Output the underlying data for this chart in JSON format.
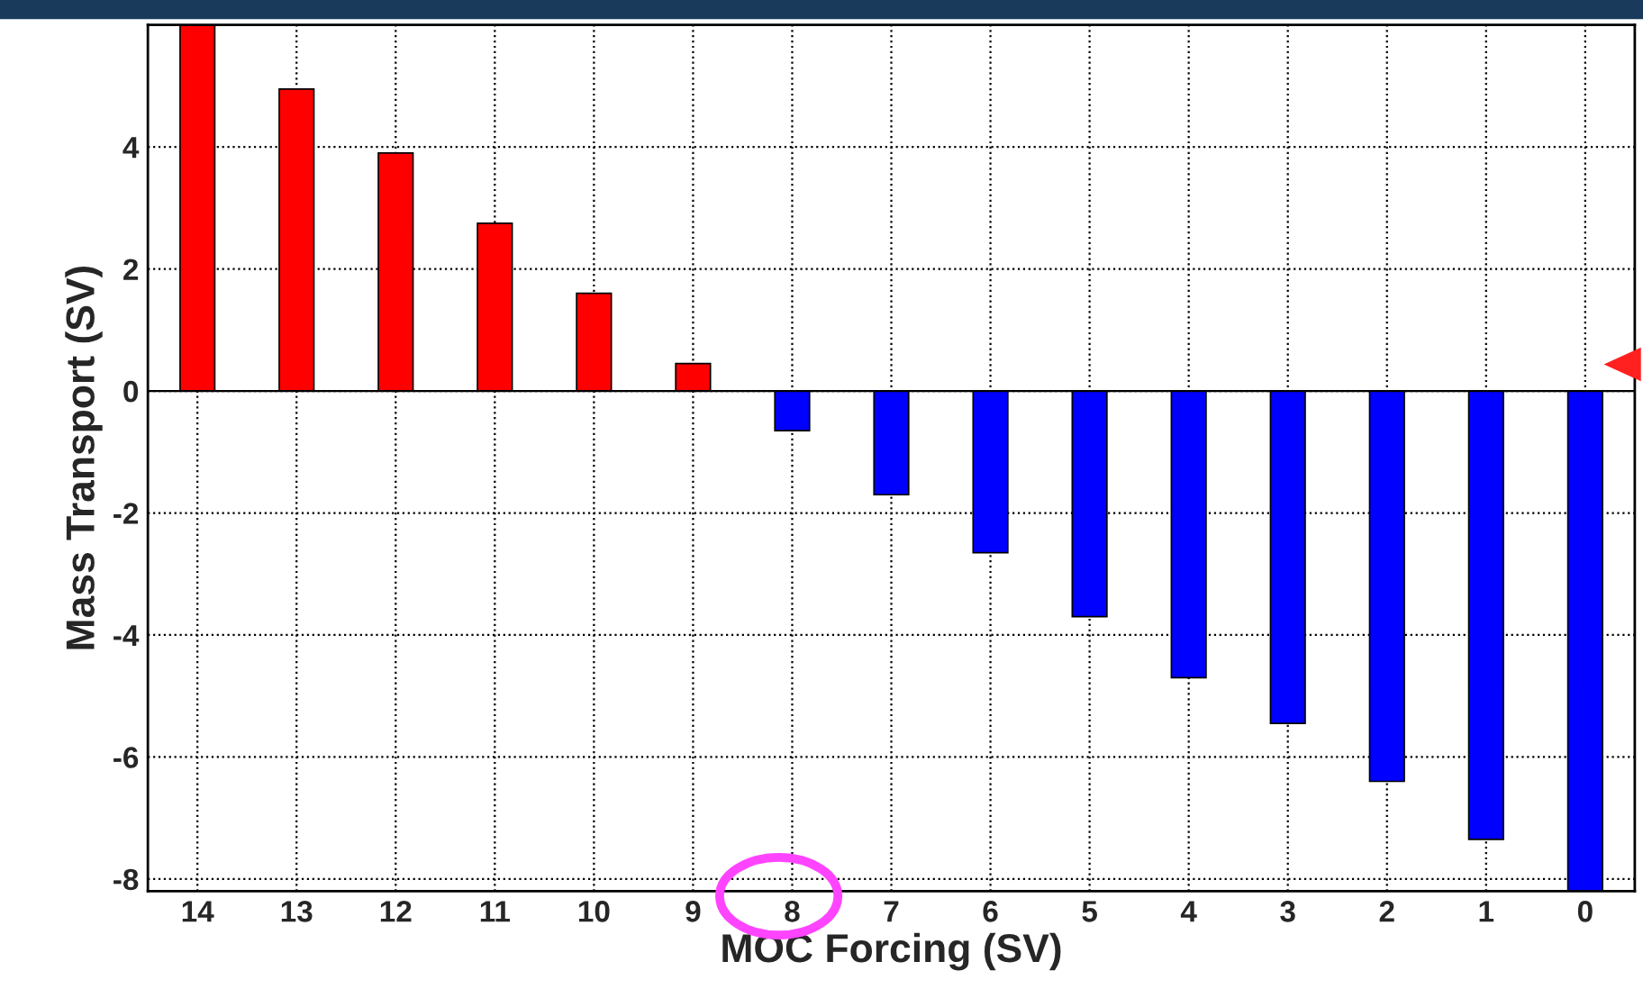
{
  "chart_data": {
    "type": "bar",
    "xlabel": "MOC Forcing (SV)",
    "ylabel": "Mass Transport (SV)",
    "categories": [
      "14",
      "13",
      "12",
      "11",
      "10",
      "9",
      "8",
      "7",
      "6",
      "5",
      "4",
      "3",
      "2",
      "1",
      "0"
    ],
    "values": [
      6,
      4.95,
      3.9,
      2.75,
      1.6,
      0.45,
      -0.65,
      -1.7,
      -2.65,
      -3.7,
      -4.7,
      -5.45,
      -6.4,
      -7.35,
      -8.2
    ],
    "colors": [
      "#ff0000",
      "#ff0000",
      "#ff0000",
      "#ff0000",
      "#ff0000",
      "#ff0000",
      "#0000ff",
      "#0000ff",
      "#0000ff",
      "#0000ff",
      "#0000ff",
      "#0000ff",
      "#0000ff",
      "#0000ff",
      "#0000ff"
    ],
    "ylim": [
      -8.2,
      6
    ],
    "yticks": [
      -8,
      -6,
      -4,
      -2,
      0,
      2,
      4
    ],
    "grid": true
  }
}
